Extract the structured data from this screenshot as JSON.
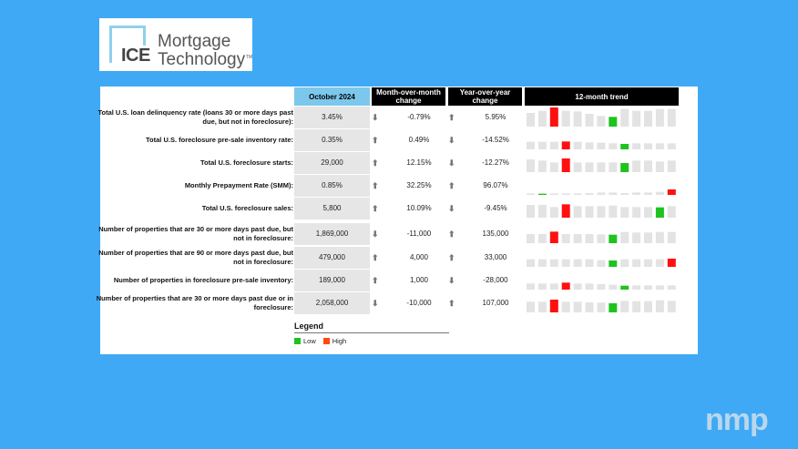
{
  "logo": {
    "ice": "ICE",
    "line1": "Mortgage",
    "line2": "Technology",
    "tm": "TM"
  },
  "headers": {
    "current": "October 2024",
    "mom": "Month-over-month change",
    "yoy": "Year-over-year change",
    "trend": "12-month trend"
  },
  "colors": {
    "low": "#1ec31e",
    "high": "#ff1010",
    "bar": "#e3e3e3",
    "header_blue": "#7cc8ec",
    "background": "#3fa9f5"
  },
  "rows": [
    {
      "label": "Total U.S. loan delinquency rate (loans 30 or more days past due, but not in foreclosure):",
      "value": "3.45%",
      "mom_dir": "down",
      "mom": "-0.79%",
      "yoy_dir": "up",
      "yoy": "5.95%",
      "trend": [
        45,
        52,
        63,
        52,
        50,
        42,
        35,
        32,
        58,
        52,
        52,
        58,
        58
      ]
    },
    {
      "label": "Total U.S. foreclosure pre-sale inventory rate:",
      "value": "0.35%",
      "mom_dir": "up",
      "mom": "0.49%",
      "yoy_dir": "down",
      "yoy": "-14.52%",
      "trend": [
        25,
        25,
        25,
        26,
        25,
        23,
        22,
        20,
        18,
        20,
        20,
        20,
        20
      ]
    },
    {
      "label": "Total U.S. foreclosure starts:",
      "value": "29,000",
      "mom_dir": "up",
      "mom": "12.15%",
      "yoy_dir": "down",
      "yoy": "-12.27%",
      "trend": [
        42,
        38,
        32,
        45,
        32,
        32,
        32,
        32,
        30,
        38,
        38,
        35,
        38
      ]
    },
    {
      "label": "Monthly Prepayment Rate (SMM):",
      "value": "0.85%",
      "mom_dir": "up",
      "mom": "32.25%",
      "yoy_dir": "up",
      "yoy": "96.07%",
      "trend": [
        5,
        4,
        5,
        5,
        5,
        6,
        8,
        8,
        6,
        8,
        8,
        10,
        18
      ]
    },
    {
      "label": "Total U.S. foreclosure sales:",
      "value": "5,800",
      "mom_dir": "up",
      "mom": "10.09%",
      "yoy_dir": "down",
      "yoy": "-9.45%",
      "trend": [
        42,
        42,
        35,
        44,
        38,
        38,
        38,
        40,
        35,
        35,
        35,
        34,
        38
      ]
    },
    {
      "label": "Number of properties that are 30 or more days past due, but not in foreclosure:",
      "value": "1,869,000",
      "mom_dir": "down",
      "mom": "-11,000",
      "yoy_dir": "up",
      "yoy": "135,000",
      "trend": [
        30,
        30,
        38,
        30,
        30,
        30,
        29,
        28,
        37,
        35,
        35,
        37,
        37
      ]
    },
    {
      "label": "Number of properties that are 90 or more days past due, but not in foreclosure:",
      "value": "479,000",
      "mom_dir": "up",
      "mom": "4,000",
      "yoy_dir": "up",
      "yoy": "33,000",
      "trend": [
        25,
        25,
        25,
        25,
        25,
        25,
        22,
        21,
        25,
        25,
        25,
        25,
        27
      ]
    },
    {
      "label": "Number of properties in foreclosure pre-sale inventory:",
      "value": "189,000",
      "mom_dir": "up",
      "mom": "1,000",
      "yoy_dir": "down",
      "yoy": "-28,000",
      "trend": [
        20,
        20,
        20,
        23,
        20,
        20,
        18,
        16,
        13,
        14,
        14,
        14,
        14
      ]
    },
    {
      "label": "Number of properties that are 30 or more days past due or in foreclosure:",
      "value": "2,058,000",
      "mom_dir": "down",
      "mom": "-10,000",
      "yoy_dir": "up",
      "yoy": "107,000",
      "trend": [
        35,
        35,
        42,
        35,
        35,
        33,
        32,
        30,
        38,
        37,
        37,
        40,
        38
      ]
    }
  ],
  "legend": {
    "title": "Legend",
    "low": "Low",
    "high": "High"
  },
  "watermark": "nmp"
}
